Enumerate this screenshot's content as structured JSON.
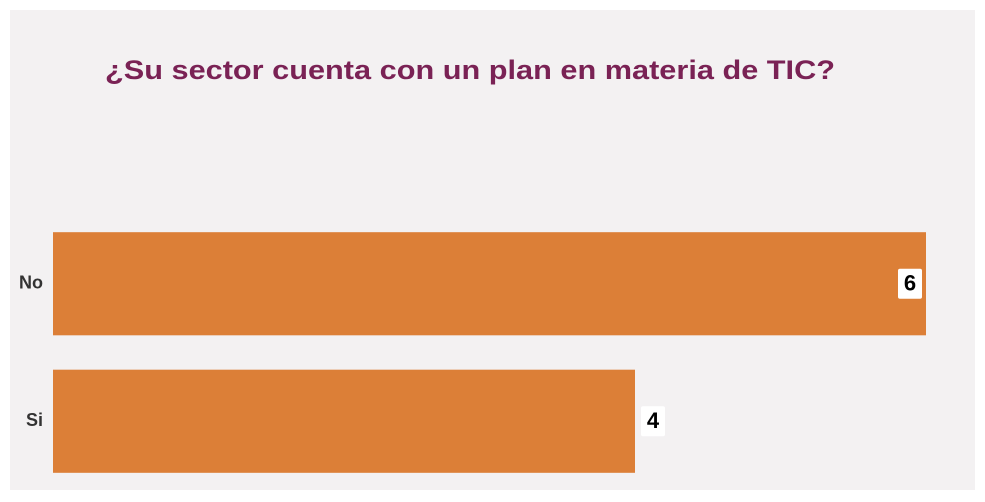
{
  "chart_data": {
    "type": "barh",
    "title": "¿Su sector cuenta con un plan en materia de TIC?",
    "categories": [
      "No",
      "Si"
    ],
    "values": [
      6,
      4
    ],
    "color": "#dc7f37",
    "xlim": [
      0,
      6
    ]
  }
}
